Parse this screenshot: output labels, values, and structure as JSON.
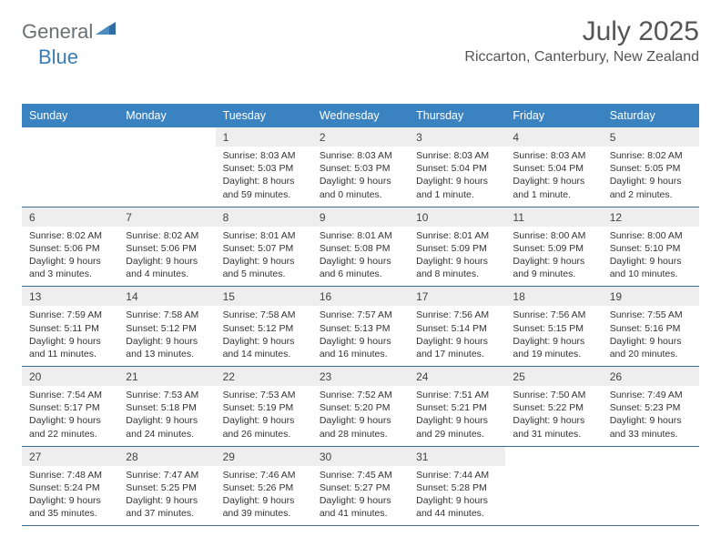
{
  "logo": {
    "part1": "General",
    "part2": "Blue"
  },
  "title": "July 2025",
  "location": "Riccarton, Canterbury, New Zealand",
  "colors": {
    "header_bg": "#3b83c0",
    "header_text": "#ffffff",
    "daynum_bg": "#eeeeee",
    "week_border": "#3b6d94",
    "logo_gray": "#6b7074",
    "logo_blue": "#3a7cb5"
  },
  "days_of_week": [
    "Sunday",
    "Monday",
    "Tuesday",
    "Wednesday",
    "Thursday",
    "Friday",
    "Saturday"
  ],
  "weeks": [
    [
      null,
      null,
      {
        "n": "1",
        "sr": "Sunrise: 8:03 AM",
        "ss": "Sunset: 5:03 PM",
        "dl": "Daylight: 8 hours and 59 minutes."
      },
      {
        "n": "2",
        "sr": "Sunrise: 8:03 AM",
        "ss": "Sunset: 5:03 PM",
        "dl": "Daylight: 9 hours and 0 minutes."
      },
      {
        "n": "3",
        "sr": "Sunrise: 8:03 AM",
        "ss": "Sunset: 5:04 PM",
        "dl": "Daylight: 9 hours and 1 minute."
      },
      {
        "n": "4",
        "sr": "Sunrise: 8:03 AM",
        "ss": "Sunset: 5:04 PM",
        "dl": "Daylight: 9 hours and 1 minute."
      },
      {
        "n": "5",
        "sr": "Sunrise: 8:02 AM",
        "ss": "Sunset: 5:05 PM",
        "dl": "Daylight: 9 hours and 2 minutes."
      }
    ],
    [
      {
        "n": "6",
        "sr": "Sunrise: 8:02 AM",
        "ss": "Sunset: 5:06 PM",
        "dl": "Daylight: 9 hours and 3 minutes."
      },
      {
        "n": "7",
        "sr": "Sunrise: 8:02 AM",
        "ss": "Sunset: 5:06 PM",
        "dl": "Daylight: 9 hours and 4 minutes."
      },
      {
        "n": "8",
        "sr": "Sunrise: 8:01 AM",
        "ss": "Sunset: 5:07 PM",
        "dl": "Daylight: 9 hours and 5 minutes."
      },
      {
        "n": "9",
        "sr": "Sunrise: 8:01 AM",
        "ss": "Sunset: 5:08 PM",
        "dl": "Daylight: 9 hours and 6 minutes."
      },
      {
        "n": "10",
        "sr": "Sunrise: 8:01 AM",
        "ss": "Sunset: 5:09 PM",
        "dl": "Daylight: 9 hours and 8 minutes."
      },
      {
        "n": "11",
        "sr": "Sunrise: 8:00 AM",
        "ss": "Sunset: 5:09 PM",
        "dl": "Daylight: 9 hours and 9 minutes."
      },
      {
        "n": "12",
        "sr": "Sunrise: 8:00 AM",
        "ss": "Sunset: 5:10 PM",
        "dl": "Daylight: 9 hours and 10 minutes."
      }
    ],
    [
      {
        "n": "13",
        "sr": "Sunrise: 7:59 AM",
        "ss": "Sunset: 5:11 PM",
        "dl": "Daylight: 9 hours and 11 minutes."
      },
      {
        "n": "14",
        "sr": "Sunrise: 7:58 AM",
        "ss": "Sunset: 5:12 PM",
        "dl": "Daylight: 9 hours and 13 minutes."
      },
      {
        "n": "15",
        "sr": "Sunrise: 7:58 AM",
        "ss": "Sunset: 5:12 PM",
        "dl": "Daylight: 9 hours and 14 minutes."
      },
      {
        "n": "16",
        "sr": "Sunrise: 7:57 AM",
        "ss": "Sunset: 5:13 PM",
        "dl": "Daylight: 9 hours and 16 minutes."
      },
      {
        "n": "17",
        "sr": "Sunrise: 7:56 AM",
        "ss": "Sunset: 5:14 PM",
        "dl": "Daylight: 9 hours and 17 minutes."
      },
      {
        "n": "18",
        "sr": "Sunrise: 7:56 AM",
        "ss": "Sunset: 5:15 PM",
        "dl": "Daylight: 9 hours and 19 minutes."
      },
      {
        "n": "19",
        "sr": "Sunrise: 7:55 AM",
        "ss": "Sunset: 5:16 PM",
        "dl": "Daylight: 9 hours and 20 minutes."
      }
    ],
    [
      {
        "n": "20",
        "sr": "Sunrise: 7:54 AM",
        "ss": "Sunset: 5:17 PM",
        "dl": "Daylight: 9 hours and 22 minutes."
      },
      {
        "n": "21",
        "sr": "Sunrise: 7:53 AM",
        "ss": "Sunset: 5:18 PM",
        "dl": "Daylight: 9 hours and 24 minutes."
      },
      {
        "n": "22",
        "sr": "Sunrise: 7:53 AM",
        "ss": "Sunset: 5:19 PM",
        "dl": "Daylight: 9 hours and 26 minutes."
      },
      {
        "n": "23",
        "sr": "Sunrise: 7:52 AM",
        "ss": "Sunset: 5:20 PM",
        "dl": "Daylight: 9 hours and 28 minutes."
      },
      {
        "n": "24",
        "sr": "Sunrise: 7:51 AM",
        "ss": "Sunset: 5:21 PM",
        "dl": "Daylight: 9 hours and 29 minutes."
      },
      {
        "n": "25",
        "sr": "Sunrise: 7:50 AM",
        "ss": "Sunset: 5:22 PM",
        "dl": "Daylight: 9 hours and 31 minutes."
      },
      {
        "n": "26",
        "sr": "Sunrise: 7:49 AM",
        "ss": "Sunset: 5:23 PM",
        "dl": "Daylight: 9 hours and 33 minutes."
      }
    ],
    [
      {
        "n": "27",
        "sr": "Sunrise: 7:48 AM",
        "ss": "Sunset: 5:24 PM",
        "dl": "Daylight: 9 hours and 35 minutes."
      },
      {
        "n": "28",
        "sr": "Sunrise: 7:47 AM",
        "ss": "Sunset: 5:25 PM",
        "dl": "Daylight: 9 hours and 37 minutes."
      },
      {
        "n": "29",
        "sr": "Sunrise: 7:46 AM",
        "ss": "Sunset: 5:26 PM",
        "dl": "Daylight: 9 hours and 39 minutes."
      },
      {
        "n": "30",
        "sr": "Sunrise: 7:45 AM",
        "ss": "Sunset: 5:27 PM",
        "dl": "Daylight: 9 hours and 41 minutes."
      },
      {
        "n": "31",
        "sr": "Sunrise: 7:44 AM",
        "ss": "Sunset: 5:28 PM",
        "dl": "Daylight: 9 hours and 44 minutes."
      },
      null,
      null
    ]
  ]
}
